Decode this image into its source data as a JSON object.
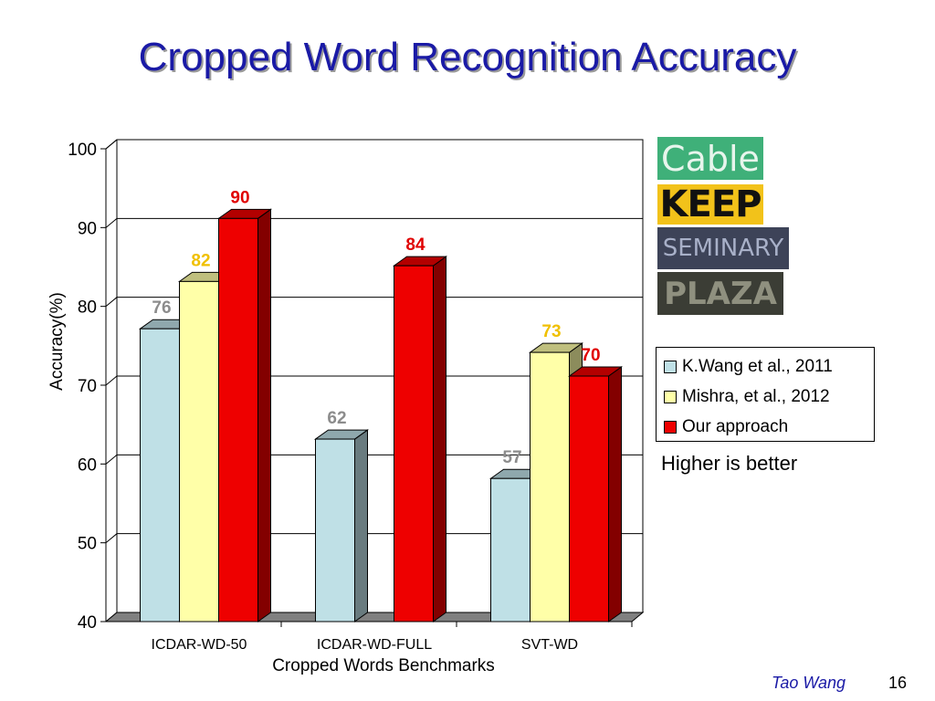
{
  "slide": {
    "title": "Cropped Word Recognition Accuracy",
    "author": "Tao Wang",
    "page_number": "16",
    "note": "Higher is better"
  },
  "word_images": [
    {
      "text": "Cable",
      "bg": "#3fb079",
      "fg": "#e7f5ec"
    },
    {
      "text": "KEEP",
      "bg": "#f2c21a",
      "fg": "#111111"
    },
    {
      "text": "SEMINARY",
      "bg": "#3d4358",
      "fg": "#a8b0c8"
    },
    {
      "text": "PLAZA",
      "bg": "#3b3d35",
      "fg": "#8f907f"
    }
  ],
  "chart_data": {
    "type": "bar",
    "title": "",
    "xlabel": "Cropped Words Benchmarks",
    "ylabel": "Accuracy(%)",
    "ylim": [
      40,
      100
    ],
    "yticks": [
      40,
      50,
      60,
      70,
      80,
      90,
      100
    ],
    "grid": true,
    "legend_position": "right",
    "categories": [
      "ICDAR-WD-50",
      "ICDAR-WD-FULL",
      "SVT-WD"
    ],
    "series": [
      {
        "name": "K.Wang et al., 2011",
        "color": "#bfe0e6",
        "label_color": "#8c8c8c",
        "values": [
          76,
          62,
          57
        ]
      },
      {
        "name": "Mishra, et al., 2012",
        "color": "#ffffa8",
        "label_color": "#f0c000",
        "values": [
          82,
          null,
          73
        ]
      },
      {
        "name": "Our approach",
        "color": "#ee0000",
        "label_color": "#e00000",
        "values": [
          90,
          84,
          70
        ]
      }
    ]
  }
}
